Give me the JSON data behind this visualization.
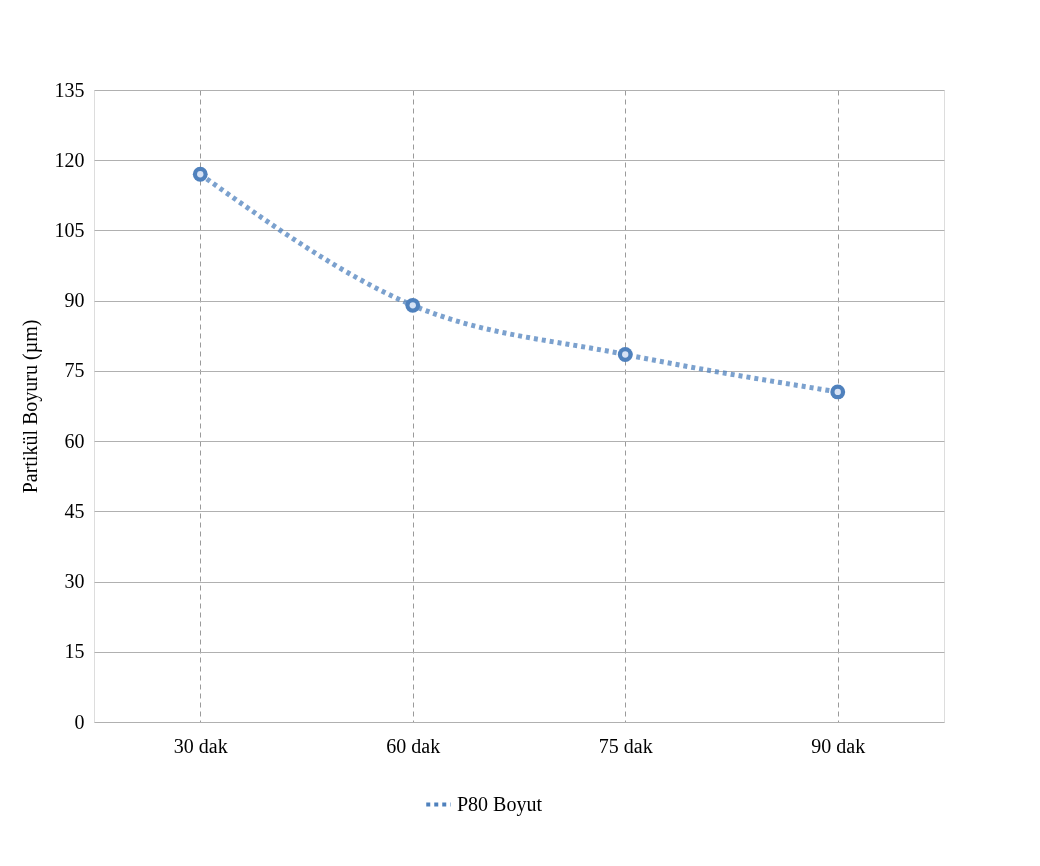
{
  "chart_data": {
    "type": "line",
    "ylabel": "Partikül Boyuru (µm)",
    "categories": [
      "30 dak",
      "60 dak",
      "75 dak",
      "90 dak"
    ],
    "series": [
      {
        "name": "P80 Boyut",
        "color": "#4f81bd",
        "values": [
          117,
          89,
          78.5,
          70.5
        ]
      }
    ],
    "ylim": [
      0,
      135
    ],
    "yticks": [
      0,
      15,
      30,
      45,
      60,
      75,
      90,
      105,
      120,
      135
    ],
    "grid": true,
    "legend": "bottom",
    "marker": "circle",
    "line_style": "dotted"
  }
}
